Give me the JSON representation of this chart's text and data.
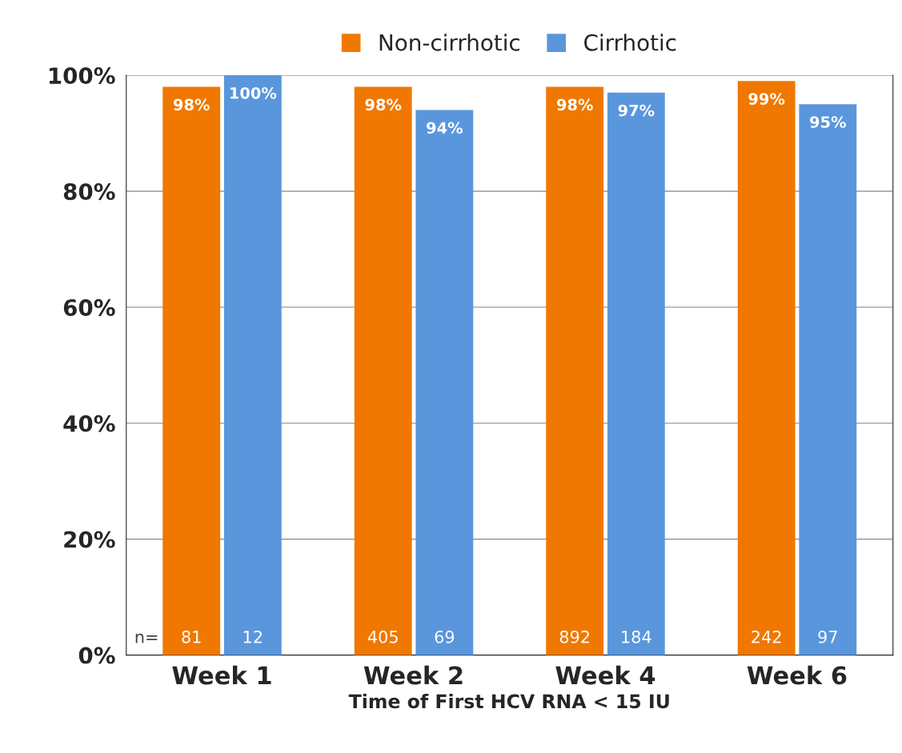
{
  "chart_data": {
    "type": "bar",
    "xlabel": "Time of First HCV RNA < 15 IU",
    "categories": [
      "Week 1",
      "Week 2",
      "Week 4",
      "Week 6"
    ],
    "series": [
      {
        "name": "Non-cirrhotic",
        "color": "#f07800",
        "values": [
          98,
          98,
          98,
          99
        ],
        "value_labels": [
          "98%",
          "98%",
          "98%",
          "99%"
        ]
      },
      {
        "name": "Cirrhotic",
        "color": "#5a96dc",
        "values": [
          100,
          94,
          97,
          95
        ],
        "value_labels": [
          "100%",
          "94%",
          "97%",
          "95%"
        ]
      }
    ],
    "ylim": [
      0,
      100
    ],
    "yticks": [
      {
        "value": 0,
        "label": "0%"
      },
      {
        "value": 20,
        "label": "20%"
      },
      {
        "value": 40,
        "label": "40%"
      },
      {
        "value": 60,
        "label": "60%"
      },
      {
        "value": 80,
        "label": "80%"
      },
      {
        "value": 100,
        "label": "100%"
      }
    ],
    "grid": "y",
    "legend": "top",
    "annotations": [
      "n=",
      {
        "text": "81",
        "x": "Week 1",
        "y": 0
      },
      {
        "text": "12",
        "x": "Week 1",
        "y": 0
      },
      {
        "text": "405",
        "x": "Week 2",
        "y": 0
      },
      {
        "text": "69",
        "x": "Week 2",
        "y": 0
      },
      {
        "text": "892",
        "x": "Week 4",
        "y": 0
      },
      {
        "text": "184",
        "x": "Week 4",
        "y": 0
      },
      {
        "text": "242",
        "x": "Week 6",
        "y": 0
      },
      {
        "text": "97",
        "x": "Week 6",
        "y": 0
      }
    ]
  }
}
